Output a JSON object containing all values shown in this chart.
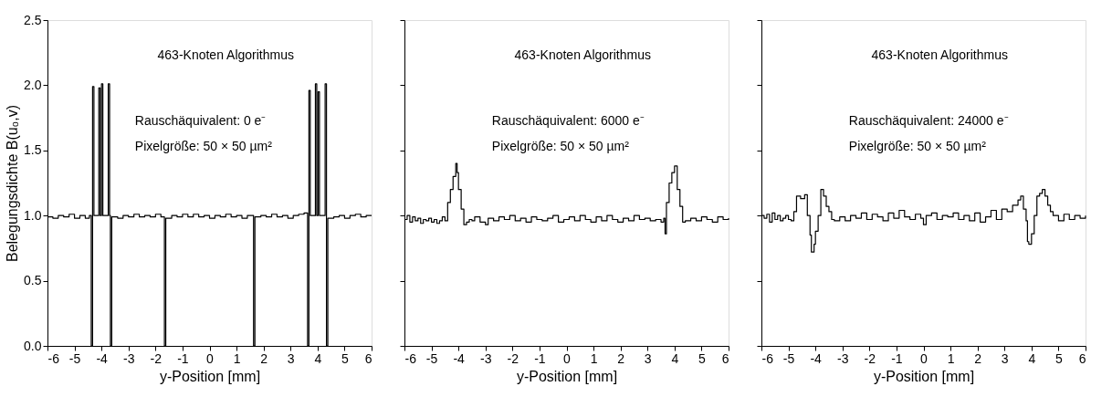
{
  "chart_data": [
    {
      "type": "step",
      "xlabel": "y-Position [mm]",
      "ylabel": "Belegungsdichte B(u₀,v)",
      "xlim": [
        -6,
        6
      ],
      "ylim": [
        0,
        2.5
      ],
      "xticks": [
        -6,
        -5,
        -4,
        -3,
        -2,
        -1,
        0,
        1,
        2,
        3,
        4,
        5,
        6
      ],
      "yticks": [
        {
          "value": 0,
          "label": "0.0"
        },
        {
          "value": 0.5,
          "label": "0.5"
        },
        {
          "value": 1,
          "label": "1.0"
        },
        {
          "value": 1.5,
          "label": "1.5"
        },
        {
          "value": 2,
          "label": "2.0"
        },
        {
          "value": 2.5,
          "label": "2.5"
        }
      ],
      "grid": false,
      "annotations": [
        "463-Knoten Algorithmus",
        "Rauschäquivalent: 0 e⁻",
        "Pixelgröße: 50 × 50 µm²"
      ],
      "series": [
        {
          "color": "#000000",
          "x": [
            -6,
            -5.8,
            -5.6,
            -5.4,
            -5.2,
            -5.0,
            -4.8,
            -4.6,
            -4.45,
            -4.38,
            -4.33,
            -4.28,
            -4.1,
            -4.05,
            -4.0,
            -3.95,
            -3.75,
            -3.7,
            -3.67,
            -3.62,
            -3.4,
            -3.2,
            -3.0,
            -2.8,
            -2.6,
            -2.4,
            -2.2,
            -2.0,
            -1.8,
            -1.67,
            -1.62,
            -1.4,
            -1.2,
            -1.0,
            -0.8,
            -0.6,
            -0.4,
            -0.2,
            0,
            0.2,
            0.4,
            0.6,
            0.8,
            1.0,
            1.2,
            1.4,
            1.63,
            1.68,
            1.9,
            2.1,
            2.3,
            2.5,
            2.7,
            2.9,
            3.1,
            3.3,
            3.5,
            3.63,
            3.68,
            3.73,
            3.92,
            3.97,
            4.02,
            4.07,
            4.28,
            4.33,
            4.38,
            4.6,
            4.8,
            5.0,
            5.2,
            5.4,
            5.6,
            5.8,
            6
          ],
          "values": [
            0.99,
            0.98,
            1.0,
            0.99,
            1.01,
            0.98,
            1.0,
            0.98,
            1.0,
            0.0,
            1.99,
            1.0,
            1.98,
            1.0,
            2.01,
            1.0,
            2.01,
            1.0,
            0.0,
            0.99,
            0.98,
            1.0,
            0.99,
            1.01,
            0.99,
            1.0,
            0.99,
            1.01,
            0.99,
            0.0,
            0.98,
            1.0,
            0.99,
            1.01,
            0.99,
            1.01,
            0.99,
            1.0,
            0.98,
            1.0,
            0.99,
            1.01,
            0.99,
            1.0,
            0.98,
            1.0,
            0.0,
            0.99,
            1.0,
            0.99,
            1.01,
            0.99,
            1.0,
            0.98,
            1.0,
            1.01,
            1.02,
            0.0,
            1.96,
            1.0,
            2.01,
            1.0,
            1.95,
            1.0,
            2.01,
            0.0,
            0.98,
            0.99,
            1.0,
            0.98,
            1.0,
            1.01,
            0.99,
            1.0,
            1.0
          ]
        }
      ]
    },
    {
      "type": "step",
      "xlabel": "y-Position [mm]",
      "xlim": [
        -6,
        6
      ],
      "ylim": [
        0,
        2.5
      ],
      "xticks": [
        -6,
        -5,
        -4,
        -3,
        -2,
        -1,
        0,
        1,
        2,
        3,
        4,
        5,
        6
      ],
      "yticks": [
        0,
        0.5,
        1,
        1.5,
        2,
        2.5
      ],
      "tick_labels": "x",
      "grid": false,
      "annotations": [
        "463-Knoten Algorithmus",
        "Rauschäquivalent: 6000 e⁻",
        "Pixelgröße: 50 × 50 µm²"
      ],
      "series": [
        {
          "color": "#000000",
          "x": [
            -6,
            -5.9,
            -5.8,
            -5.7,
            -5.6,
            -5.5,
            -5.4,
            -5.3,
            -5.2,
            -5.1,
            -5.0,
            -4.9,
            -4.8,
            -4.7,
            -4.6,
            -4.5,
            -4.4,
            -4.3,
            -4.2,
            -4.1,
            -4.05,
            -4.0,
            -3.9,
            -3.8,
            -3.7,
            -3.6,
            -3.5,
            -3.4,
            -3.2,
            -3.0,
            -2.9,
            -2.7,
            -2.5,
            -2.3,
            -2.1,
            -1.9,
            -1.7,
            -1.5,
            -1.3,
            -1.1,
            -0.9,
            -0.7,
            -0.5,
            -0.3,
            -0.1,
            0.1,
            0.3,
            0.5,
            0.7,
            0.9,
            1.1,
            1.3,
            1.5,
            1.7,
            1.9,
            2.1,
            2.3,
            2.5,
            2.7,
            2.9,
            3.1,
            3.3,
            3.5,
            3.6,
            3.65,
            3.7,
            3.8,
            3.9,
            4.0,
            4.1,
            4.2,
            4.3,
            4.4,
            4.6,
            4.8,
            5.0,
            5.2,
            5.4,
            5.6,
            5.8,
            6
          ],
          "values": [
            0.97,
            1.0,
            0.95,
            0.99,
            0.96,
            0.98,
            0.94,
            0.97,
            0.96,
            0.98,
            0.95,
            0.97,
            0.94,
            0.96,
            0.99,
            0.96,
            1.1,
            1.2,
            1.3,
            1.4,
            1.33,
            1.2,
            1.05,
            0.93,
            0.95,
            0.97,
            0.96,
            0.99,
            0.95,
            0.93,
            0.98,
            0.96,
            0.99,
            0.97,
            1.0,
            0.96,
            0.98,
            0.95,
            0.99,
            0.97,
            0.96,
            0.98,
            1.0,
            0.95,
            0.97,
            0.99,
            0.96,
            1.0,
            0.97,
            0.95,
            0.99,
            0.96,
            1.0,
            0.97,
            0.95,
            0.98,
            0.96,
            1.0,
            0.97,
            0.98,
            0.96,
            0.97,
            0.95,
            0.98,
            0.86,
            1.1,
            1.25,
            1.33,
            1.38,
            1.2,
            1.07,
            0.95,
            0.96,
            0.98,
            0.96,
            0.99,
            0.97,
            0.95,
            0.99,
            0.97,
            0.98
          ]
        }
      ]
    },
    {
      "type": "step",
      "xlabel": "y-Position [mm]",
      "xlim": [
        -6,
        6
      ],
      "ylim": [
        0,
        2.5
      ],
      "xticks": [
        -6,
        -5,
        -4,
        -3,
        -2,
        -1,
        0,
        1,
        2,
        3,
        4,
        5,
        6
      ],
      "yticks": [
        0,
        0.5,
        1,
        1.5,
        2,
        2.5
      ],
      "tick_labels": "x",
      "grid": false,
      "annotations": [
        "463-Knoten Algorithmus",
        "Rauschäquivalent: 24000 e⁻",
        "Pixelgröße: 50 × 50 µm²"
      ],
      "series": [
        {
          "color": "#000000",
          "x": [
            -6,
            -5.9,
            -5.8,
            -5.7,
            -5.6,
            -5.5,
            -5.4,
            -5.3,
            -5.2,
            -5.1,
            -5.0,
            -4.9,
            -4.8,
            -4.7,
            -4.55,
            -4.4,
            -4.3,
            -4.2,
            -4.15,
            -4.05,
            -4.0,
            -3.9,
            -3.8,
            -3.7,
            -3.6,
            -3.5,
            -3.4,
            -3.3,
            -3.1,
            -2.9,
            -2.7,
            -2.5,
            -2.3,
            -2.1,
            -1.9,
            -1.7,
            -1.5,
            -1.3,
            -1.1,
            -0.9,
            -0.7,
            -0.5,
            -0.3,
            -0.1,
            0.0,
            0.1,
            0.3,
            0.5,
            0.7,
            0.9,
            1.1,
            1.3,
            1.5,
            1.7,
            1.9,
            2.1,
            2.3,
            2.5,
            2.7,
            2.9,
            3.1,
            3.3,
            3.5,
            3.6,
            3.7,
            3.8,
            3.85,
            3.9,
            4.0,
            4.1,
            4.2,
            4.3,
            4.4,
            4.5,
            4.6,
            4.7,
            4.8,
            5.0,
            5.2,
            5.4,
            5.6,
            5.8,
            6
          ],
          "values": [
            1.0,
            0.98,
            1.01,
            0.95,
            1.02,
            0.97,
            1.0,
            0.96,
            0.98,
            1.0,
            0.97,
            0.96,
            1.03,
            1.15,
            1.13,
            1.16,
            1.0,
            0.85,
            0.72,
            0.78,
            0.88,
            1.0,
            1.2,
            1.15,
            1.07,
            1.03,
            0.97,
            0.96,
            0.99,
            0.96,
            1.0,
            0.98,
            1.02,
            0.97,
            1.01,
            0.99,
            0.96,
            1.02,
            0.98,
            1.04,
            0.99,
            0.97,
            1.01,
            0.98,
            0.93,
            1.0,
            1.02,
            0.97,
            1.0,
            0.99,
            1.02,
            0.97,
            1.0,
            0.96,
            1.02,
            0.95,
            0.99,
            1.04,
            0.97,
            1.05,
            1.03,
            1.08,
            1.12,
            1.15,
            1.05,
            0.96,
            0.8,
            0.78,
            0.86,
            1.0,
            1.15,
            1.17,
            1.2,
            1.15,
            1.08,
            1.03,
            1.0,
            0.96,
            1.01,
            0.97,
            1.0,
            0.98,
            1.0
          ]
        }
      ]
    }
  ]
}
